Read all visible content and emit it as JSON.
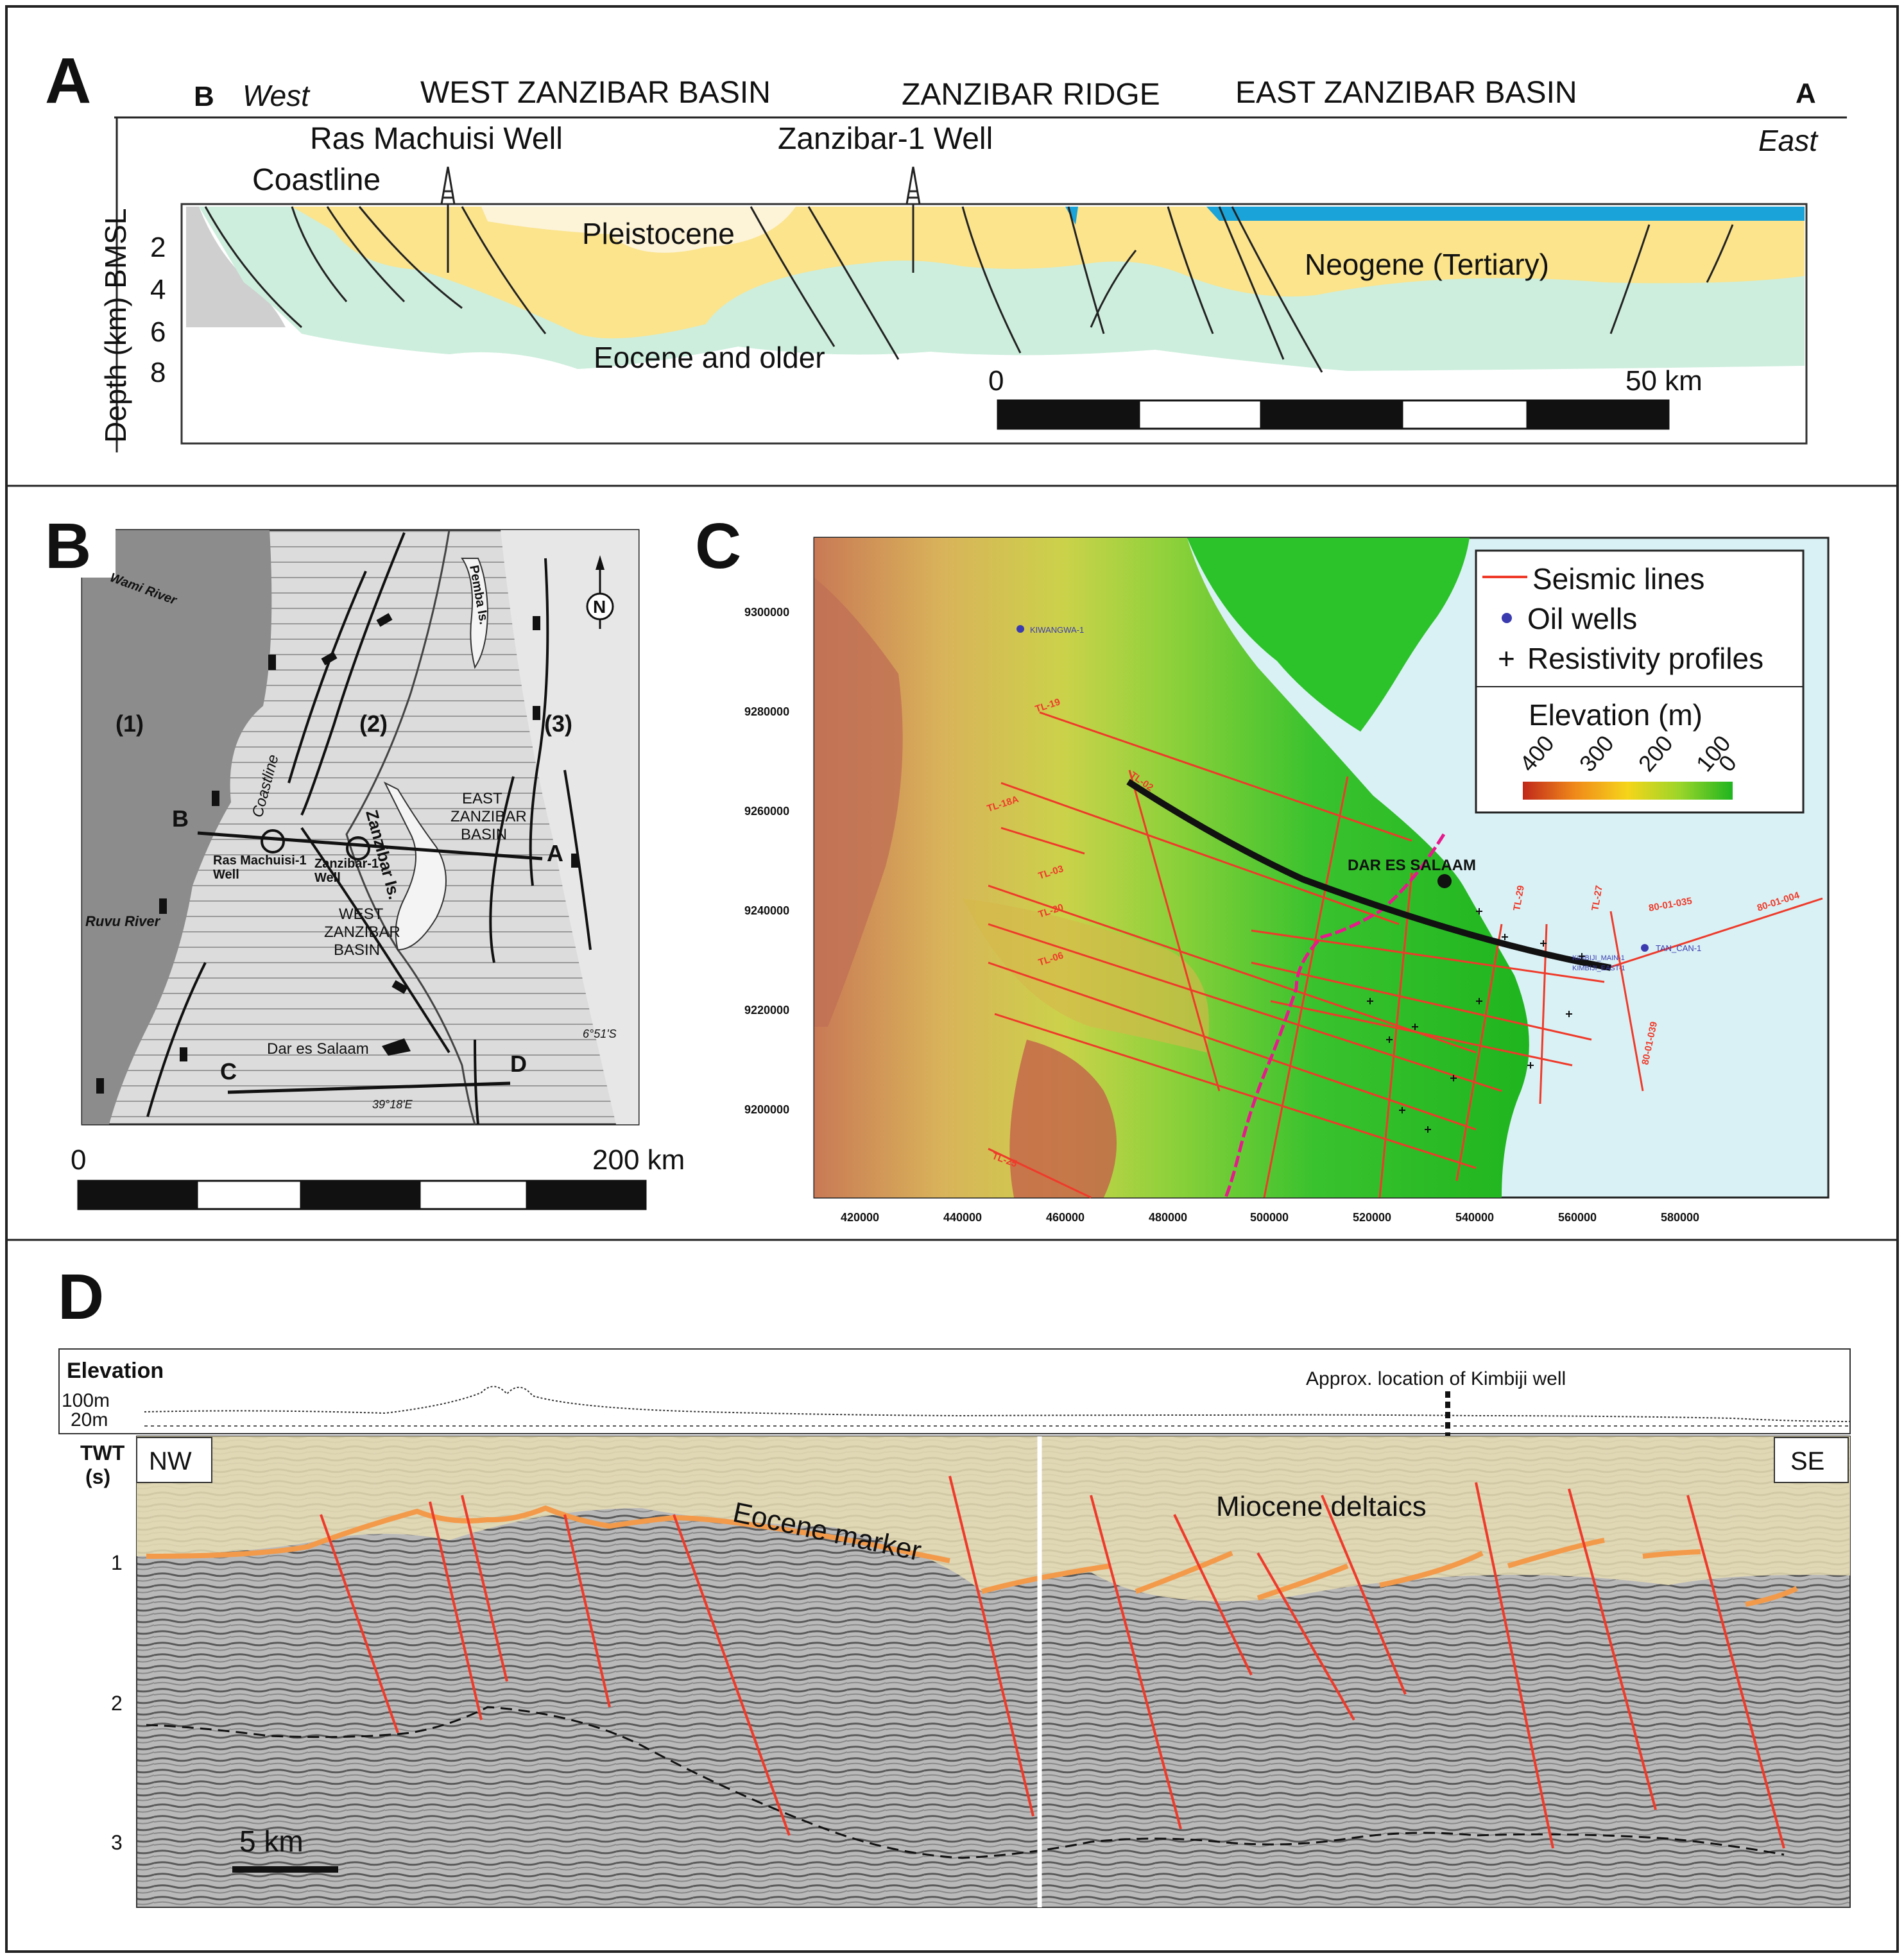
{
  "colors": {
    "pleistocene": "#fdf3d6",
    "neogene": "#fbe48c",
    "eocene": "#cdeedd",
    "sea": "#1aa3d8",
    "land_gray": "#cfcfcf",
    "fault_red": "#ef3a2a",
    "eocene_marker": "#f39a4a",
    "miocene_fill": "#e6dcb4",
    "map_dark": "#8c8c8c",
    "map_light": "#dcdcdc",
    "sea_light": "#d9f1f5",
    "well_blue": "#3b3bb0",
    "contour_pink": "#e8198c"
  },
  "panelA": {
    "letter": "A",
    "left_end": "B",
    "west": "West",
    "region1": "WEST ZANZIBAR BASIN",
    "region2": "ZANZIBAR RIDGE",
    "region3": "EAST ZANZIBAR BASIN",
    "right_end": "A",
    "east": "East",
    "well1": "Ras Machuisi Well",
    "well2": "Zanzibar-1 Well",
    "coastline": "Coastline",
    "ylabel": "Depth (km) BMSL",
    "depth_ticks": [
      "2",
      "4",
      "6",
      "8"
    ],
    "unit1": "Pleistocene",
    "unit2": "Neogene (Tertiary)",
    "unit3": "Eocene and older",
    "scale_start": "0",
    "scale_end": "50 km"
  },
  "panelB": {
    "letter": "B",
    "river1": "Wami River",
    "river2": "Ruvu River",
    "zone1": "(1)",
    "zone2": "(2)",
    "zone3": "(3)",
    "coastline": "Coastline",
    "pemba": "Pemba Is.",
    "zanzibar": "Zanzibar Is.",
    "east_basin": [
      "EAST",
      "ZANZIBAR",
      "BASIN"
    ],
    "west_basin": [
      "WEST",
      "ZANZIBAR",
      "BASIN"
    ],
    "well1": [
      "Ras Machuisi-1",
      "Well"
    ],
    "well2": [
      "Zanzibar-1",
      "Well"
    ],
    "end_b": "B",
    "end_a": "A",
    "end_c": "C",
    "end_d": "D",
    "city": "Dar es Salaam",
    "lat": "6°51'S",
    "lon": "39°18'E",
    "north": "N",
    "scale_start": "0",
    "scale_end": "200 km"
  },
  "panelC": {
    "letter": "C",
    "legend": {
      "seismic": "Seismic lines",
      "wells": "Oil wells",
      "resistivity": "Resistivity profiles",
      "elev_title": "Elevation (m)",
      "elev_ticks": [
        "400",
        "300",
        "200",
        "100",
        "0"
      ]
    },
    "city": "DAR ES SALAAM",
    "x_ticks": [
      "420000",
      "440000",
      "460000",
      "480000",
      "500000",
      "520000",
      "540000",
      "560000",
      "580000"
    ],
    "y_ticks": [
      "9300000",
      "9280000",
      "9260000",
      "9240000",
      "9220000",
      "9200000"
    ],
    "wells": [
      "KIWANGWA-1",
      "TAN_CAN-1",
      "KIMBIJI_MAIN-1",
      "KIMBIJI_EAST-1"
    ],
    "offshore_lines": [
      "80-01-035",
      "80-01-004",
      "80-01-039"
    ],
    "line_labels": [
      "TL-19",
      "TL-02",
      "TL-18A",
      "TL-03",
      "TL-20",
      "TL-06",
      "TL-29",
      "TL-27",
      "TL-25"
    ]
  },
  "panelD": {
    "letter": "D",
    "elevation": "Elevation",
    "e100": "100m",
    "e20": "20m",
    "kimbiji": "Approx. location of Kimbiji well",
    "twt": [
      "TWT",
      "(s)"
    ],
    "nw": "NW",
    "se": "SE",
    "unit1": "Miocene deltaics",
    "unit2": "Eocene marker",
    "twt_ticks": [
      "1",
      "2",
      "3"
    ],
    "scale": "5 km"
  }
}
